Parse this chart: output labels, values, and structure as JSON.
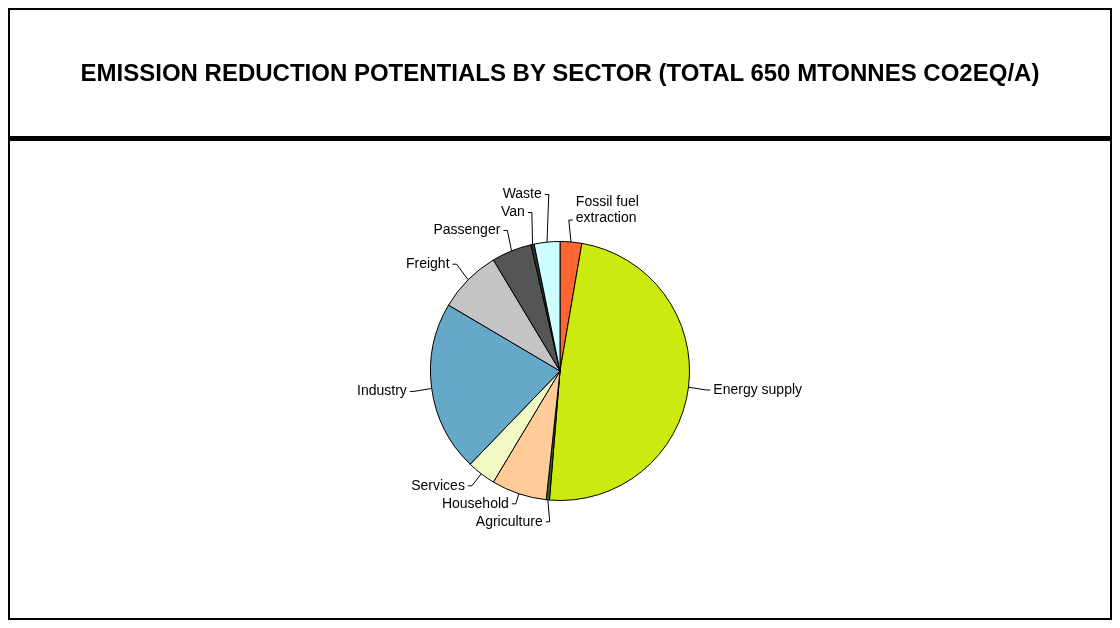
{
  "chart_data": {
    "type": "pie",
    "title": "EMISSION REDUCTION POTENTIALS BY SECTOR (TOTAL 650 MTONNES CO2EQ/A)",
    "categories": [
      "Fossil fuel extraction",
      "Energy supply",
      "Agriculture",
      "Household",
      "Services",
      "Industry",
      "Freight",
      "Passenger",
      "Van",
      "Waste"
    ],
    "values": [
      2.7,
      48.6,
      0.4,
      6.9,
      3.6,
      21.3,
      7.9,
      5.0,
      0.4,
      3.2
    ],
    "colors": [
      "#ff6633",
      "#ccea10",
      "#336633",
      "#ffcc99",
      "#f2f9c4",
      "#66a8c8",
      "#c4c4c4",
      "#555555",
      "#333333",
      "#ccffff"
    ],
    "legend": false
  }
}
